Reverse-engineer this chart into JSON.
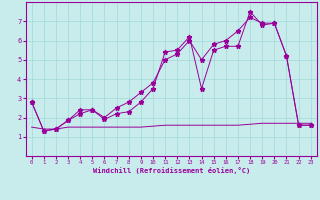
{
  "xlabel": "Windchill (Refroidissement éolien,°C)",
  "bg_color": "#c8ecec",
  "line_color": "#990099",
  "xlim": [
    -0.5,
    23.5
  ],
  "ylim": [
    0,
    8
  ],
  "xticks": [
    0,
    1,
    2,
    3,
    4,
    5,
    6,
    7,
    8,
    9,
    10,
    11,
    12,
    13,
    14,
    15,
    16,
    17,
    18,
    19,
    20,
    21,
    22,
    23
  ],
  "yticks": [
    1,
    2,
    3,
    4,
    5,
    6,
    7
  ],
  "grid_color": "#a0d8d8",
  "line1_x": [
    0,
    1,
    2,
    3,
    4,
    5,
    6,
    7,
    8,
    9,
    10,
    11,
    12,
    13,
    14,
    15,
    16,
    17,
    18,
    19,
    20,
    21,
    22,
    23
  ],
  "line1_y": [
    2.8,
    1.3,
    1.4,
    1.85,
    2.2,
    2.4,
    1.9,
    2.2,
    2.3,
    2.8,
    3.5,
    5.4,
    5.5,
    6.2,
    3.5,
    5.5,
    5.7,
    5.7,
    7.5,
    6.8,
    6.9,
    5.2,
    1.6,
    1.6
  ],
  "line2_x": [
    0,
    1,
    2,
    3,
    4,
    5,
    6,
    7,
    8,
    9,
    10,
    11,
    12,
    13,
    14,
    15,
    16,
    17,
    18,
    19,
    20,
    21,
    22,
    23
  ],
  "line2_y": [
    2.8,
    1.3,
    1.4,
    1.85,
    2.4,
    2.4,
    2.0,
    2.5,
    2.8,
    3.3,
    3.8,
    5.0,
    5.3,
    6.0,
    5.0,
    5.8,
    6.0,
    6.5,
    7.2,
    6.9,
    6.9,
    5.2,
    1.6,
    1.6
  ],
  "line3_x": [
    0,
    1,
    2,
    3,
    4,
    5,
    6,
    7,
    8,
    9,
    10,
    11,
    12,
    13,
    14,
    15,
    16,
    17,
    18,
    19,
    20,
    21,
    22,
    23
  ],
  "line3_y": [
    1.5,
    1.4,
    1.4,
    1.5,
    1.5,
    1.5,
    1.5,
    1.5,
    1.5,
    1.5,
    1.55,
    1.6,
    1.6,
    1.6,
    1.6,
    1.6,
    1.6,
    1.6,
    1.65,
    1.7,
    1.7,
    1.7,
    1.7,
    1.7
  ]
}
